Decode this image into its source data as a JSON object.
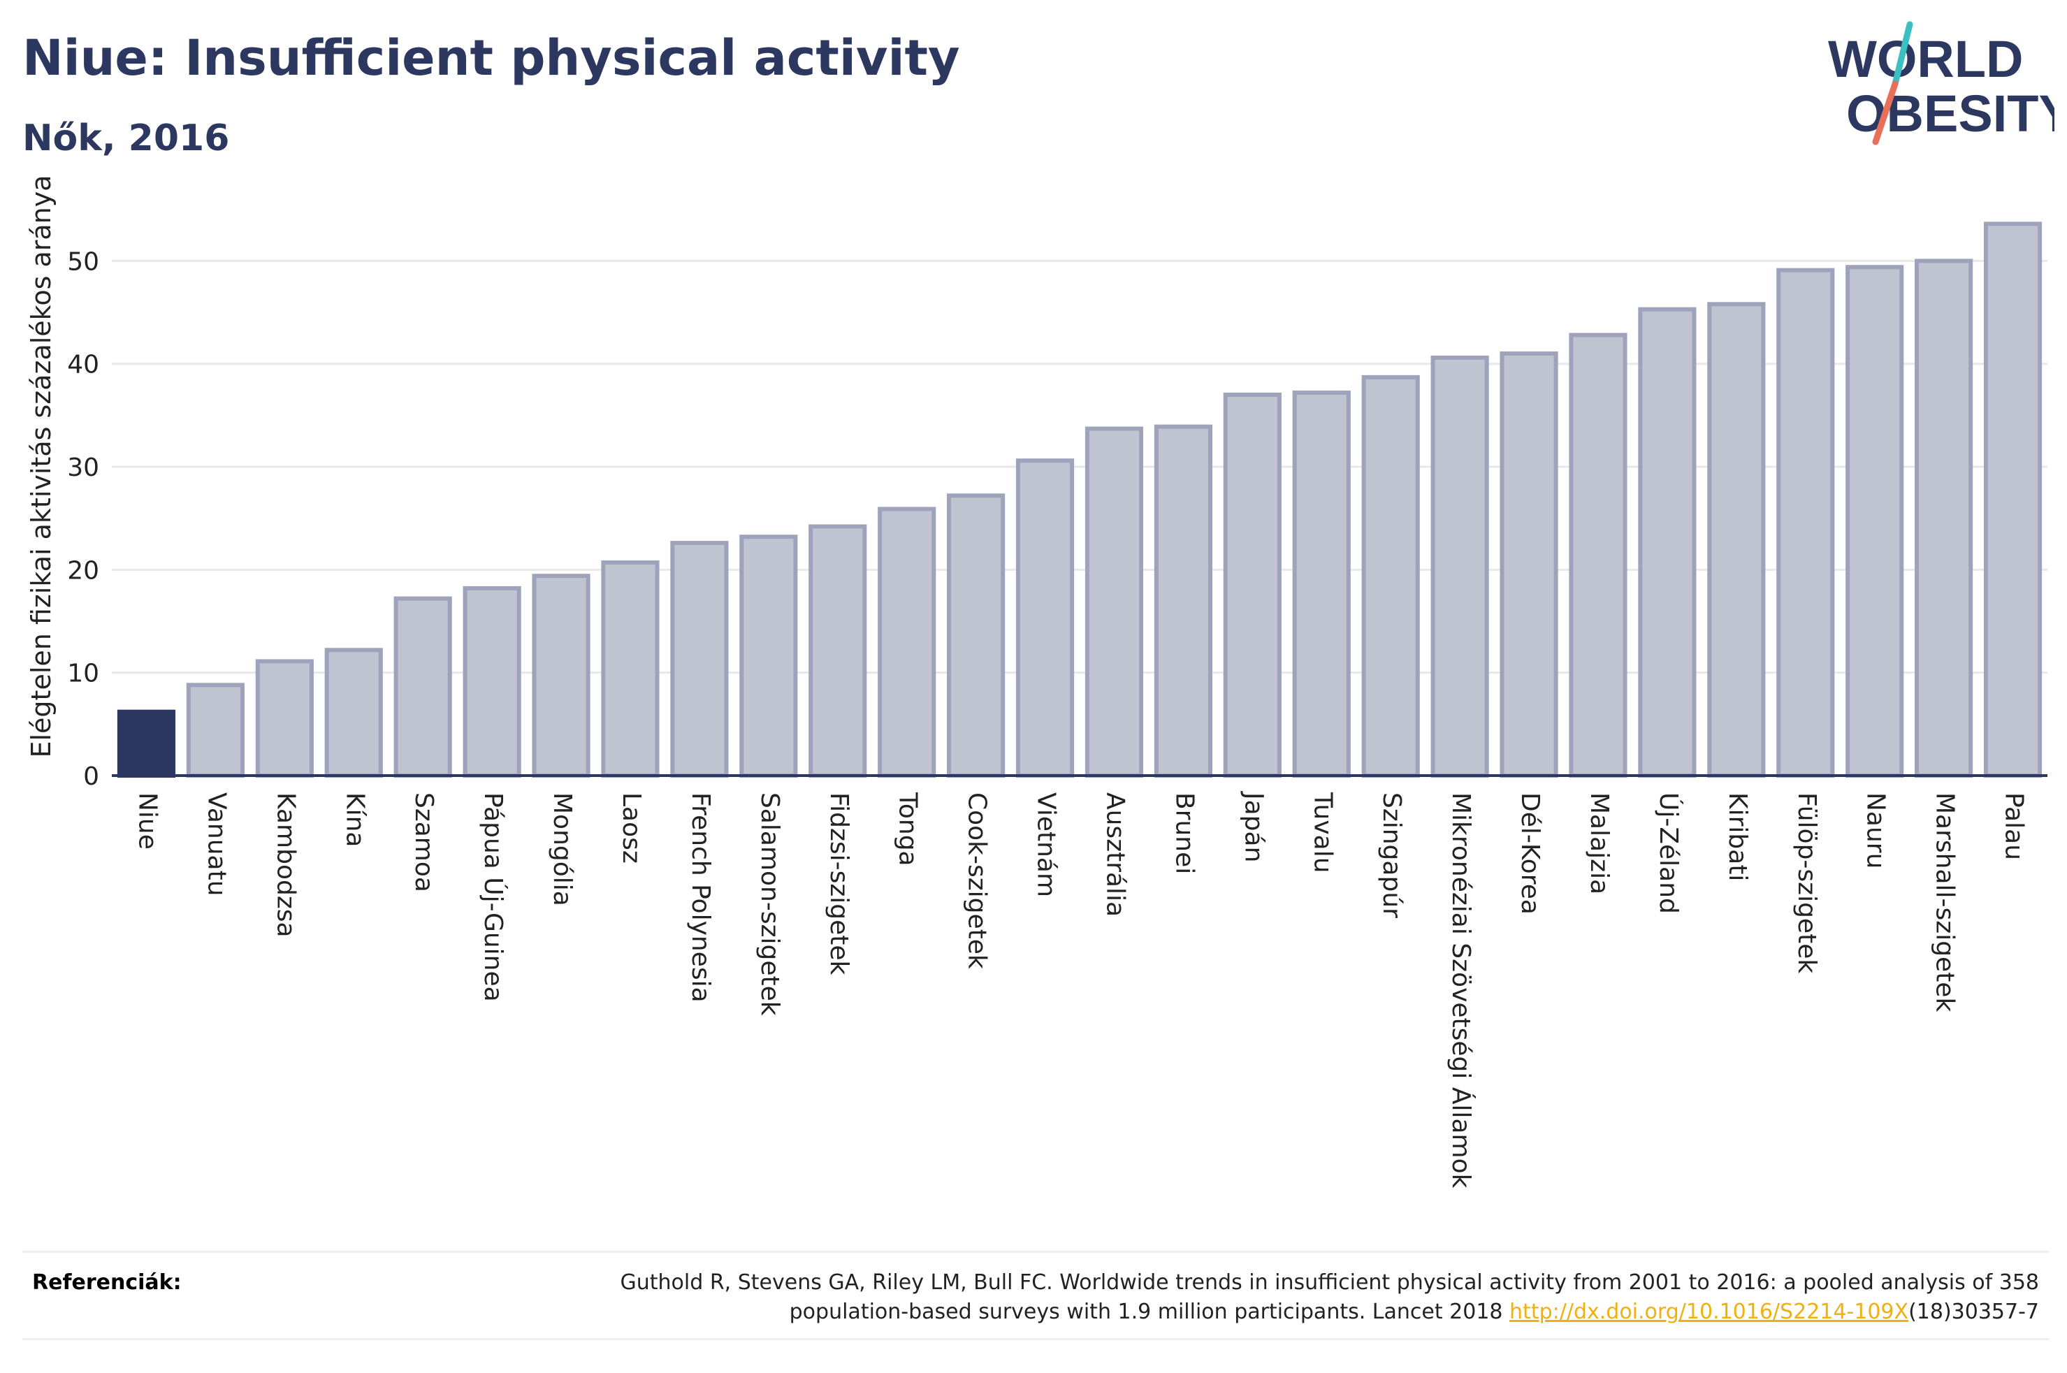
{
  "header": {
    "title": "Niue: Insufficient physical activity",
    "subtitle": "Nők, 2016"
  },
  "logo": {
    "line1": "WORLD",
    "line2": "OBESITY",
    "text_color": "#2d3861",
    "slash_colors": [
      "#3bbfc0",
      "#e8705a"
    ]
  },
  "chart_data": {
    "type": "bar",
    "title": "Niue: Insufficient physical activity",
    "subtitle": "Nők, 2016",
    "xlabel": "",
    "ylabel": "Elégtelen fizikai aktivitás százalékos aránya",
    "ylim": [
      0,
      56
    ],
    "yticks": [
      0,
      10,
      20,
      30,
      40,
      50
    ],
    "grid": true,
    "categories": [
      "Niue",
      "Vanuatu",
      "Kambodzsa",
      "Kína",
      "Szamoa",
      "Pápua Új-Guinea",
      "Mongólia",
      "Laosz",
      "French Polynesia",
      "Salamon-szigetek",
      "Fidzsi-szigetek",
      "Tonga",
      "Cook-szigetek",
      "Vietnám",
      "Ausztrália",
      "Brunei",
      "Japán",
      "Tuvalu",
      "Szingapúr",
      "Mikronéziai Szövetségi Államok",
      "Dél-Korea",
      "Malajzia",
      "Új-Zéland",
      "Kiribati",
      "Fülöp-szigetek",
      "Nauru",
      "Marshall-szigetek",
      "Palau"
    ],
    "values": [
      6.2,
      8.8,
      11.1,
      12.2,
      17.2,
      18.2,
      19.4,
      20.7,
      22.6,
      23.2,
      24.2,
      25.9,
      27.2,
      30.6,
      33.7,
      33.9,
      37.0,
      37.2,
      38.7,
      40.6,
      41.0,
      42.8,
      45.3,
      45.8,
      49.1,
      49.4,
      50.0,
      53.6
    ],
    "highlight": "Niue",
    "colors": {
      "highlight": "#2d3861",
      "bar_fill": "#c0c3d0",
      "bar_stroke": "#9ea3bb",
      "grid": "#e8e8e8",
      "axis": "#2d3861"
    }
  },
  "references": {
    "label": "Referenciák:",
    "line1": "Guthold R, Stevens GA, Riley LM, Bull FC. Worldwide trends in insufficient physical activity from 2001 to 2016: a pooled analysis of 358",
    "line2_before": "population-based surveys with 1.9 million participants. Lancet 2018 ",
    "link_text": "http://dx.doi.org/10.1016/S2214-109X",
    "line2_after": "(18)30357-7"
  }
}
